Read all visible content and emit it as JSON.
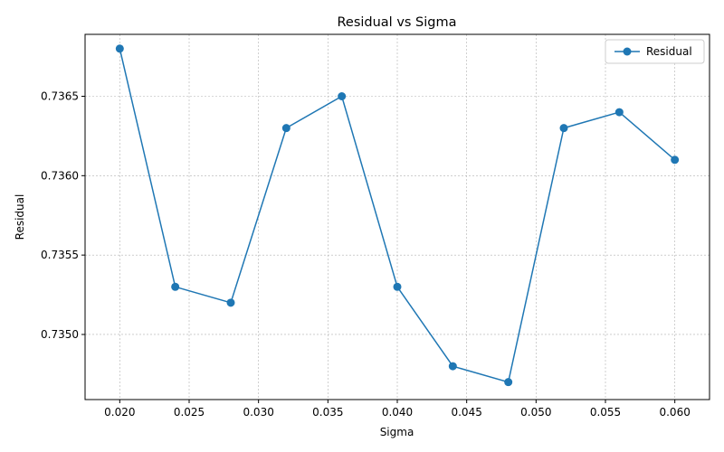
{
  "chart_data": {
    "type": "line",
    "title": "Residual vs Sigma",
    "xlabel": "Sigma",
    "ylabel": "Residual",
    "xlim": [
      0.0175,
      0.0625
    ],
    "ylim": [
      0.73459,
      0.73689
    ],
    "xticks": [
      "0.020",
      "0.025",
      "0.030",
      "0.035",
      "0.040",
      "0.045",
      "0.050",
      "0.055",
      "0.060"
    ],
    "yticks": [
      "0.7350",
      "0.7355",
      "0.7360",
      "0.7365"
    ],
    "grid": true,
    "legend_position": "top-right",
    "series": [
      {
        "name": "Residual",
        "color": "#1f77b4",
        "marker": "circle",
        "x": [
          0.02,
          0.024,
          0.028,
          0.032,
          0.036,
          0.04,
          0.044,
          0.048,
          0.052,
          0.056,
          0.06
        ],
        "y": [
          0.7368,
          0.7353,
          0.7352,
          0.7363,
          0.7365,
          0.7353,
          0.7348,
          0.7347,
          0.7363,
          0.7364,
          0.7361
        ]
      }
    ]
  }
}
